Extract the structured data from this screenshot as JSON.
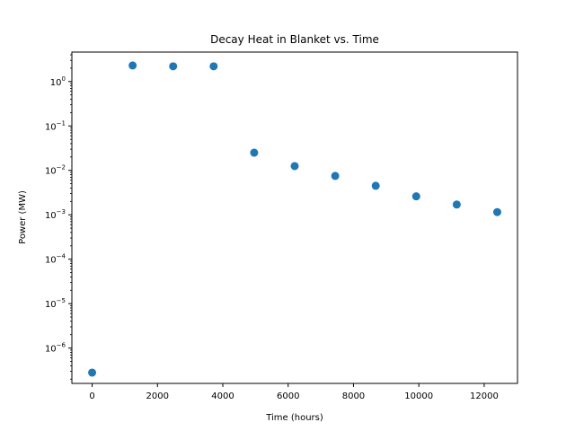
{
  "chart_data": {
    "type": "scatter",
    "title": "Decay Heat in Blanket vs. Time",
    "xlabel": "Time (hours)",
    "ylabel": "Power (MW)",
    "x_scale": "linear",
    "y_scale": "log",
    "xlim": [
      -620,
      13020
    ],
    "ylim": [
      1.6e-07,
      4.6
    ],
    "x_ticks": [
      0,
      2000,
      4000,
      6000,
      8000,
      10000,
      12000
    ],
    "x_tick_labels": [
      "0",
      "2000",
      "4000",
      "6000",
      "8000",
      "10000",
      "12000"
    ],
    "y_ticks": [
      1e-06,
      1e-05,
      0.0001,
      0.001,
      0.01,
      0.1,
      1
    ],
    "y_tick_labels": [
      {
        "base": "10",
        "exp": "−6"
      },
      {
        "base": "10",
        "exp": "−5"
      },
      {
        "base": "10",
        "exp": "−4"
      },
      {
        "base": "10",
        "exp": "−3"
      },
      {
        "base": "10",
        "exp": "−2"
      },
      {
        "base": "10",
        "exp": "−1"
      },
      {
        "base": "10",
        "exp": "0"
      }
    ],
    "grid": false,
    "marker_color": "#1f77b4",
    "points": [
      {
        "x": 0,
        "y": 2.8e-07
      },
      {
        "x": 1240,
        "y": 2.3
      },
      {
        "x": 2480,
        "y": 2.2
      },
      {
        "x": 3720,
        "y": 2.2
      },
      {
        "x": 4960,
        "y": 0.025
      },
      {
        "x": 6200,
        "y": 0.0125
      },
      {
        "x": 7440,
        "y": 0.0075
      },
      {
        "x": 8680,
        "y": 0.0045
      },
      {
        "x": 9920,
        "y": 0.0026
      },
      {
        "x": 11160,
        "y": 0.0017
      },
      {
        "x": 12400,
        "y": 0.00115
      }
    ]
  }
}
